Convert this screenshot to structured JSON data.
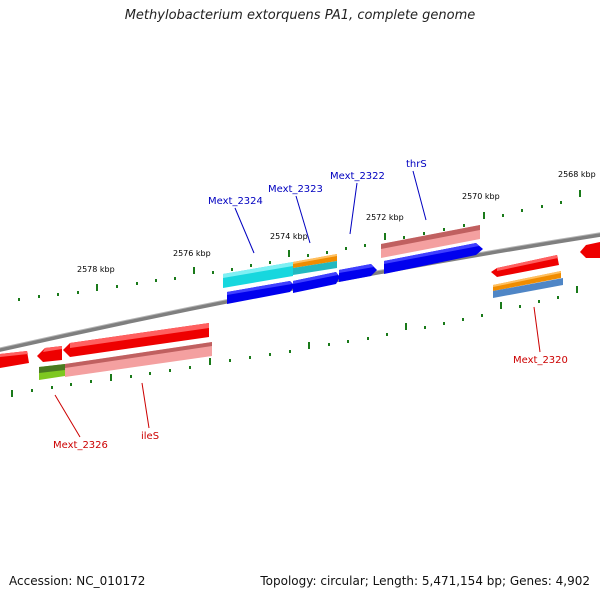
{
  "title": "Methylobacterium extorquens PA1, complete genome",
  "footer": {
    "accession": "Accession: NC_010172",
    "summary": "Topology: circular; Length: 5,471,154 bp; Genes: 4,902"
  },
  "colors": {
    "backbone": "#808080",
    "tick": "#1a7a1a",
    "forward_label": "#0000c0",
    "reverse_label": "#cc0000"
  },
  "tick_labels": [
    "2578 kbp",
    "2576 kbp",
    "2574 kbp",
    "2572 kbp",
    "2570 kbp",
    "2568 kbp"
  ],
  "gene_labels": [
    {
      "id": "mext2324",
      "text": "Mext_2324",
      "strand": "forward"
    },
    {
      "id": "mext2323",
      "text": "Mext_2323",
      "strand": "forward"
    },
    {
      "id": "mext2322",
      "text": "Mext_2322",
      "strand": "forward"
    },
    {
      "id": "thrS",
      "text": "thrS",
      "strand": "forward"
    },
    {
      "id": "mext2320",
      "text": "Mext_2320",
      "strand": "reverse"
    },
    {
      "id": "mext2326",
      "text": "Mext_2326",
      "strand": "reverse"
    },
    {
      "id": "ileS",
      "text": "ileS",
      "strand": "reverse"
    }
  ]
}
